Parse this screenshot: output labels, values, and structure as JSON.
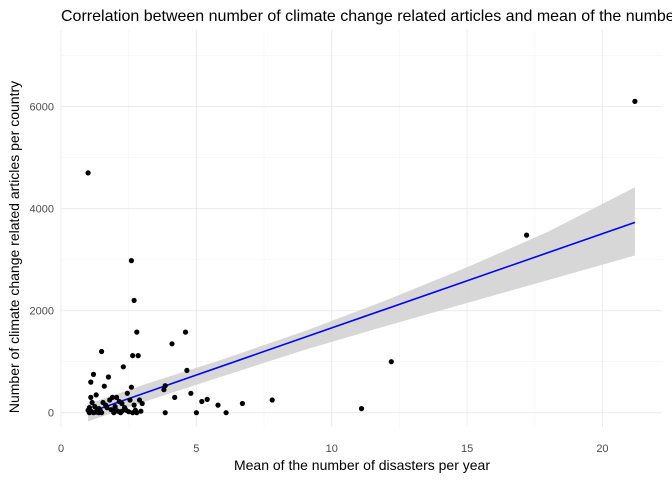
{
  "chart_data": {
    "type": "scatter",
    "title": "Correlation between number of climate change related articles and mean of the number of disasters per year",
    "xlabel": "Mean of the number of disasters per year",
    "ylabel": "Number of climate change related articles per country",
    "xlim": [
      0,
      22.2
    ],
    "ylim": [
      -280,
      7500
    ],
    "xticks": [
      0,
      5,
      10,
      15,
      20
    ],
    "yticks": [
      0,
      2000,
      4000,
      6000
    ],
    "grid": true,
    "legend": "none",
    "point_color": "#000000",
    "fit_color": "#0000ff",
    "band_color": "#d3d3d3",
    "points": [
      [
        1.0,
        4700
      ],
      [
        21.2,
        6100
      ],
      [
        17.2,
        3480
      ],
      [
        12.2,
        1000
      ],
      [
        11.1,
        80
      ],
      [
        2.6,
        2980
      ],
      [
        2.7,
        2200
      ],
      [
        2.8,
        1580
      ],
      [
        2.65,
        1120
      ],
      [
        2.85,
        1120
      ],
      [
        1.5,
        1200
      ],
      [
        4.6,
        1580
      ],
      [
        4.1,
        1350
      ],
      [
        4.65,
        830
      ],
      [
        3.8,
        450
      ],
      [
        3.85,
        530
      ],
      [
        3.85,
        0
      ],
      [
        4.2,
        300
      ],
      [
        4.8,
        380
      ],
      [
        5.0,
        0
      ],
      [
        5.2,
        220
      ],
      [
        5.4,
        260
      ],
      [
        5.8,
        150
      ],
      [
        6.1,
        0
      ],
      [
        6.7,
        180
      ],
      [
        7.8,
        250
      ],
      [
        1.2,
        750
      ],
      [
        1.1,
        600
      ],
      [
        1.3,
        350
      ],
      [
        1.4,
        80
      ],
      [
        1.05,
        100
      ],
      [
        1.1,
        30
      ],
      [
        1.2,
        0
      ],
      [
        1.25,
        120
      ],
      [
        1.3,
        10
      ],
      [
        1.35,
        50
      ],
      [
        1.45,
        40
      ],
      [
        1.5,
        0
      ],
      [
        1.55,
        200
      ],
      [
        1.6,
        520
      ],
      [
        1.7,
        100
      ],
      [
        1.75,
        700
      ],
      [
        1.8,
        250
      ],
      [
        1.85,
        60
      ],
      [
        1.9,
        300
      ],
      [
        2.0,
        80
      ],
      [
        2.05,
        300
      ],
      [
        2.1,
        30
      ],
      [
        2.15,
        220
      ],
      [
        2.2,
        0
      ],
      [
        2.25,
        180
      ],
      [
        2.3,
        900
      ],
      [
        2.35,
        100
      ],
      [
        2.4,
        50
      ],
      [
        2.45,
        380
      ],
      [
        2.5,
        20
      ],
      [
        2.55,
        250
      ],
      [
        2.6,
        500
      ],
      [
        2.65,
        0
      ],
      [
        2.7,
        150
      ],
      [
        2.75,
        50
      ],
      [
        2.8,
        0
      ],
      [
        2.9,
        250
      ],
      [
        2.95,
        30
      ],
      [
        3.0,
        180
      ],
      [
        1.15,
        200
      ],
      [
        1.65,
        150
      ],
      [
        1.95,
        0
      ],
      [
        2.0,
        120
      ],
      [
        1.05,
        0
      ],
      [
        1.0,
        50
      ],
      [
        1.1,
        300
      ],
      [
        1.4,
        0
      ],
      [
        2.25,
        30
      ]
    ],
    "fit_line": {
      "x": [
        1.0,
        21.2
      ],
      "y": [
        0,
        3730
      ]
    },
    "confidence_band": {
      "x": [
        1.0,
        3.0,
        6.0,
        9.0,
        12.0,
        15.0,
        18.0,
        21.2
      ],
      "lower": [
        -170,
        200,
        720,
        1230,
        1700,
        2150,
        2600,
        3080
      ],
      "upper": [
        170,
        540,
        1050,
        1600,
        2200,
        2850,
        3550,
        4420
      ]
    }
  }
}
